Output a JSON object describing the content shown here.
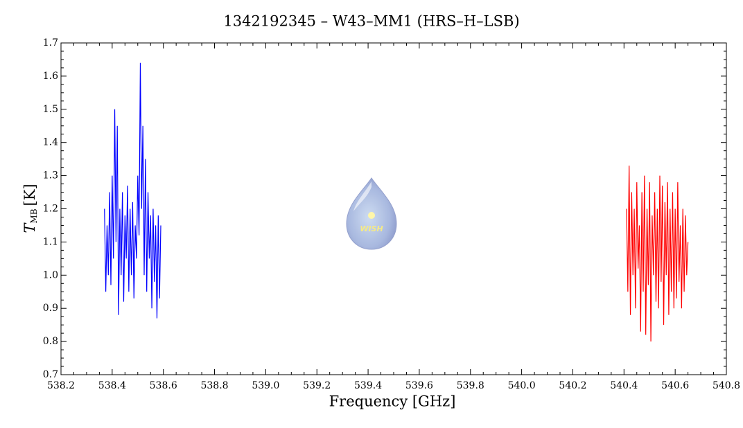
{
  "chart_data": {
    "type": "line",
    "title": "1342192345 – W43–MM1 (HRS–H–LSB)",
    "xlabel": "Frequency [GHz]",
    "ylabel": "T",
    "ylabel_sub": "MB",
    "ylabel_unit": "[K]",
    "logo_text": "WISH",
    "xlim": [
      538.2,
      540.8
    ],
    "xticks": [
      538.2,
      538.4,
      538.6,
      538.8,
      {
        "value": 539,
        "label": "539.0"
      },
      539.2,
      539.4,
      539.6,
      539.8,
      {
        "value": 540,
        "label": "540.0"
      },
      540.2,
      540.4,
      540.6,
      540.8
    ],
    "ylim": [
      0.7,
      1.7
    ],
    "yticks": [
      0.7,
      0.8,
      0.9,
      {
        "value": 1,
        "label": "1.0"
      },
      1.1,
      1.2,
      1.3,
      1.4,
      1.5,
      1.6,
      1.7
    ],
    "series": [
      {
        "color": "#0000ff",
        "x": [
          538.37,
          538.375,
          538.38,
          538.385,
          538.39,
          538.395,
          538.4,
          538.405,
          538.41,
          538.415,
          538.42,
          538.425,
          538.43,
          538.435,
          538.44,
          538.445,
          538.45,
          538.455,
          538.46,
          538.465,
          538.47,
          538.475,
          538.48,
          538.485,
          538.49,
          538.495,
          538.5,
          538.505,
          538.51,
          538.515,
          538.52,
          538.525,
          538.53,
          538.535,
          538.54,
          538.545,
          538.55,
          538.555,
          538.56,
          538.565,
          538.57,
          538.575,
          538.58,
          538.585,
          538.59
        ],
        "values": [
          1.2,
          0.95,
          1.15,
          1.0,
          1.25,
          0.97,
          1.3,
          1.05,
          1.5,
          1.1,
          1.45,
          0.88,
          1.2,
          1.0,
          1.25,
          0.92,
          1.18,
          1.05,
          1.27,
          0.95,
          1.2,
          1.0,
          1.22,
          0.93,
          1.15,
          1.05,
          1.3,
          1.12,
          1.64,
          1.2,
          1.45,
          1.0,
          1.35,
          0.95,
          1.25,
          1.05,
          1.18,
          0.9,
          1.2,
          0.98,
          1.15,
          0.87,
          1.18,
          0.93,
          1.15
        ]
      },
      {
        "color": "#ff0000",
        "x": [
          540.41,
          540.415,
          540.42,
          540.425,
          540.43,
          540.435,
          540.44,
          540.445,
          540.45,
          540.455,
          540.46,
          540.465,
          540.47,
          540.475,
          540.48,
          540.485,
          540.49,
          540.495,
          540.5,
          540.505,
          540.51,
          540.515,
          540.52,
          540.525,
          540.53,
          540.535,
          540.54,
          540.545,
          540.55,
          540.555,
          540.56,
          540.565,
          540.57,
          540.575,
          540.58,
          540.585,
          540.59,
          540.595,
          540.6,
          540.605,
          540.61,
          540.615,
          540.62,
          540.625,
          540.63,
          540.635,
          540.64,
          540.645,
          540.65
        ],
        "values": [
          1.2,
          0.95,
          1.33,
          0.88,
          1.25,
          1.0,
          1.2,
          0.9,
          1.28,
          1.02,
          1.15,
          0.83,
          1.25,
          0.95,
          1.3,
          0.82,
          1.2,
          0.97,
          1.28,
          0.8,
          1.18,
          1.0,
          1.25,
          0.92,
          1.2,
          0.9,
          1.3,
          0.98,
          1.27,
          0.85,
          1.22,
          1.0,
          1.28,
          0.88,
          1.2,
          0.95,
          1.25,
          0.9,
          1.2,
          0.93,
          1.28,
          0.98,
          1.15,
          0.9,
          1.2,
          0.95,
          1.18,
          1.0,
          1.1
        ]
      }
    ]
  }
}
